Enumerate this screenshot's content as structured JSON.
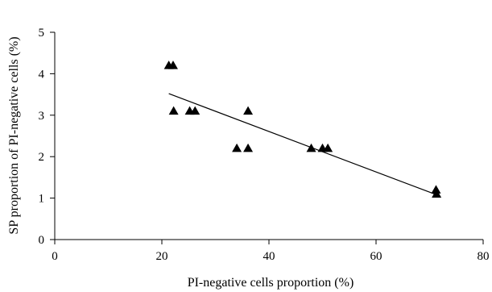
{
  "chart_data": {
    "type": "scatter",
    "title": "",
    "xlabel": "PI-negative cells proportion (%)",
    "ylabel": "SP proportion of PI-negative cells (%)",
    "xlim": [
      0,
      80
    ],
    "ylim": [
      0,
      5
    ],
    "xticks": [
      "0",
      "20",
      "40",
      "60",
      "80"
    ],
    "yticks": [
      "0",
      "1",
      "2",
      "3",
      "4",
      "5"
    ],
    "grid": false,
    "legend": "none",
    "marker": "filled-triangle",
    "marker_color": "#000000",
    "points": [
      {
        "x": 21.3,
        "y": 4.2
      },
      {
        "x": 22.1,
        "y": 4.2
      },
      {
        "x": 22.2,
        "y": 3.1
      },
      {
        "x": 25.2,
        "y": 3.1
      },
      {
        "x": 26.2,
        "y": 3.1
      },
      {
        "x": 34.0,
        "y": 2.2
      },
      {
        "x": 36.1,
        "y": 3.1
      },
      {
        "x": 36.1,
        "y": 2.2
      },
      {
        "x": 47.9,
        "y": 2.2
      },
      {
        "x": 50.0,
        "y": 2.2
      },
      {
        "x": 51.0,
        "y": 2.2
      },
      {
        "x": 71.2,
        "y": 1.2
      },
      {
        "x": 71.3,
        "y": 1.1
      }
    ],
    "trendline": {
      "type": "linear",
      "x": [
        21.3,
        71.3
      ],
      "y": [
        3.52,
        1.08
      ]
    }
  }
}
